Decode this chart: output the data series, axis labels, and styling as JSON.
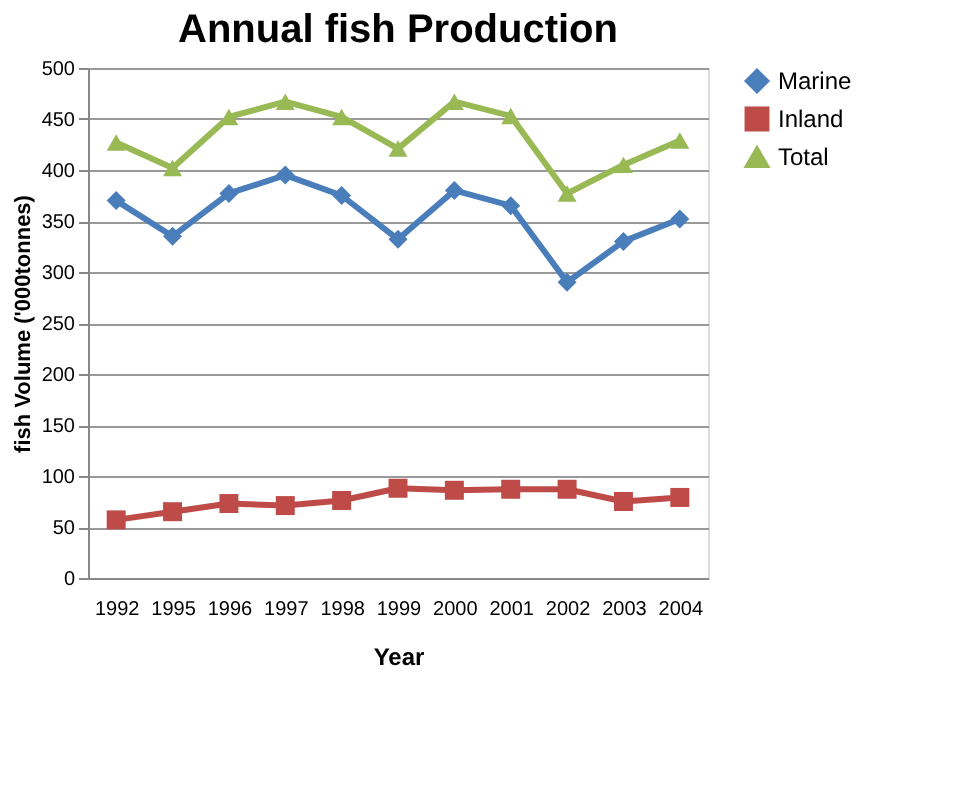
{
  "chart_data": {
    "type": "line",
    "title": "Annual fish Production",
    "xlabel": "Year",
    "ylabel": "fish Volume ('000tonnes)",
    "categories": [
      "1992",
      "1995",
      "1996",
      "1997",
      "1998",
      "1999",
      "2000",
      "2001",
      "2002",
      "2003",
      "2004"
    ],
    "series": [
      {
        "name": "Marine",
        "color": "#4a7ebb",
        "marker": "diamond",
        "values": [
          370,
          335,
          377,
          395,
          375,
          332,
          380,
          365,
          290,
          330,
          352
        ]
      },
      {
        "name": "Inland",
        "color": "#be4b48",
        "marker": "square",
        "values": [
          57,
          65,
          73,
          71,
          76,
          88,
          86,
          87,
          87,
          75,
          79
        ]
      },
      {
        "name": "Total",
        "color": "#98b954",
        "marker": "triangle",
        "values": [
          427,
          402,
          452,
          467,
          452,
          421,
          467,
          453,
          377,
          405,
          429
        ]
      }
    ],
    "ylim": [
      0,
      500
    ],
    "yticks": [
      0,
      50,
      100,
      150,
      200,
      250,
      300,
      350,
      400,
      450,
      500
    ],
    "grid": "y",
    "legend": "right"
  }
}
